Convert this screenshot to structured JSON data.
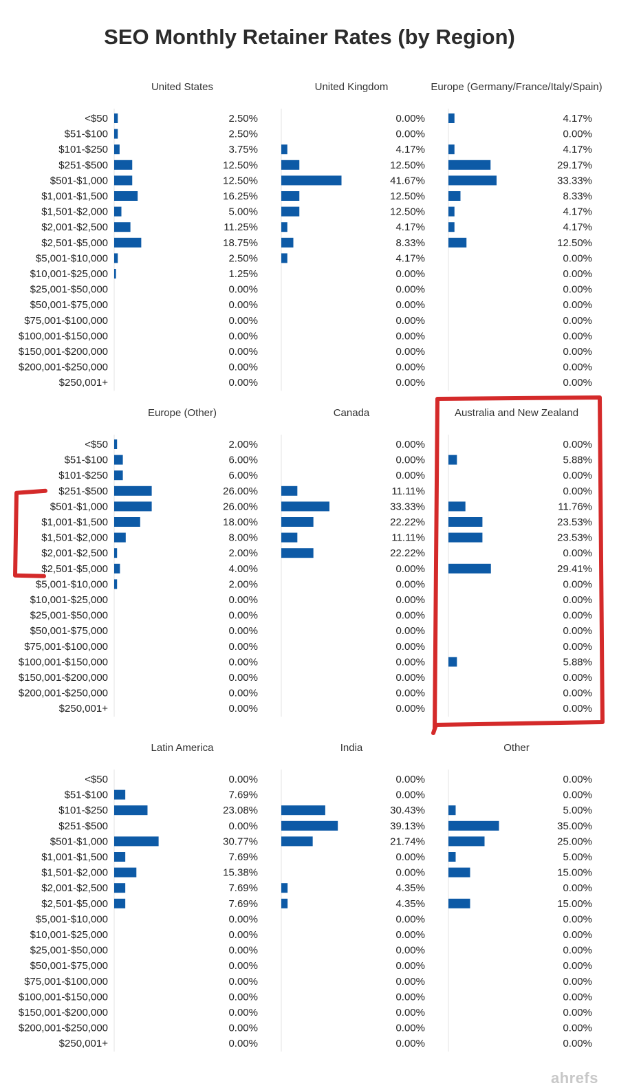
{
  "chart_data": {
    "type": "bar",
    "orientation": "horizontal",
    "title": "SEO Monthly Retainer Rates (by Region)",
    "value_format": "percent",
    "categories": [
      "<$50",
      "$51-$100",
      "$101-$250",
      "$251-$500",
      "$501-$1,000",
      "$1,001-$1,500",
      "$1,501-$2,000",
      "$2,001-$2,500",
      "$2,501-$5,000",
      "$5,001-$10,000",
      "$10,001-$25,000",
      "$25,001-$50,000",
      "$50,001-$75,000",
      "$75,001-$100,000",
      "$100,001-$150,000",
      "$150,001-$200,000",
      "$200,001-$250,000",
      "$250,001+"
    ],
    "xlim": [
      0,
      100
    ],
    "series": [
      {
        "name": "United States",
        "values": [
          2.5,
          2.5,
          3.75,
          12.5,
          12.5,
          16.25,
          5.0,
          11.25,
          18.75,
          2.5,
          1.25,
          0,
          0,
          0,
          0,
          0,
          0,
          0
        ],
        "labels": [
          "2.50%",
          "2.50%",
          "3.75%",
          "12.50%",
          "12.50%",
          "16.25%",
          "5.00%",
          "11.25%",
          "18.75%",
          "2.50%",
          "1.25%",
          "0.00%",
          "0.00%",
          "0.00%",
          "0.00%",
          "0.00%",
          "0.00%",
          "0.00%"
        ]
      },
      {
        "name": "United Kingdom",
        "values": [
          0,
          0,
          4.17,
          12.5,
          41.67,
          12.5,
          12.5,
          4.17,
          8.33,
          4.17,
          0,
          0,
          0,
          0,
          0,
          0,
          0,
          0
        ],
        "labels": [
          "0.00%",
          "0.00%",
          "4.17%",
          "12.50%",
          "41.67%",
          "12.50%",
          "12.50%",
          "4.17%",
          "8.33%",
          "4.17%",
          "0.00%",
          "0.00%",
          "0.00%",
          "0.00%",
          "0.00%",
          "0.00%",
          "0.00%",
          "0.00%"
        ]
      },
      {
        "name": "Europe (Germany/France/Italy/Spain)",
        "values": [
          4.17,
          0,
          4.17,
          29.17,
          33.33,
          8.33,
          4.17,
          4.17,
          12.5,
          0,
          0,
          0,
          0,
          0,
          0,
          0,
          0,
          0
        ],
        "labels": [
          "4.17%",
          "0.00%",
          "4.17%",
          "29.17%",
          "33.33%",
          "8.33%",
          "4.17%",
          "4.17%",
          "12.50%",
          "0.00%",
          "0.00%",
          "0.00%",
          "0.00%",
          "0.00%",
          "0.00%",
          "0.00%",
          "0.00%",
          "0.00%"
        ]
      },
      {
        "name": "Europe (Other)",
        "values": [
          2.0,
          6.0,
          6.0,
          26.0,
          26.0,
          18.0,
          8.0,
          2.0,
          4.0,
          2.0,
          0,
          0,
          0,
          0,
          0,
          0,
          0,
          0
        ],
        "labels": [
          "2.00%",
          "6.00%",
          "6.00%",
          "26.00%",
          "26.00%",
          "18.00%",
          "8.00%",
          "2.00%",
          "4.00%",
          "2.00%",
          "0.00%",
          "0.00%",
          "0.00%",
          "0.00%",
          "0.00%",
          "0.00%",
          "0.00%",
          "0.00%"
        ]
      },
      {
        "name": "Canada",
        "values": [
          0,
          0,
          0,
          11.11,
          33.33,
          22.22,
          11.11,
          22.22,
          0,
          0,
          0,
          0,
          0,
          0,
          0,
          0,
          0,
          0
        ],
        "labels": [
          "0.00%",
          "0.00%",
          "0.00%",
          "11.11%",
          "33.33%",
          "22.22%",
          "11.11%",
          "22.22%",
          "0.00%",
          "0.00%",
          "0.00%",
          "0.00%",
          "0.00%",
          "0.00%",
          "0.00%",
          "0.00%",
          "0.00%",
          "0.00%"
        ]
      },
      {
        "name": "Australia and New Zealand",
        "highlighted": true,
        "values": [
          0,
          5.88,
          0,
          0,
          11.76,
          23.53,
          23.53,
          0,
          29.41,
          0,
          0,
          0,
          0,
          0,
          5.88,
          0,
          0,
          0
        ],
        "labels": [
          "0.00%",
          "5.88%",
          "0.00%",
          "0.00%",
          "11.76%",
          "23.53%",
          "23.53%",
          "0.00%",
          "29.41%",
          "0.00%",
          "0.00%",
          "0.00%",
          "0.00%",
          "0.00%",
          "5.88%",
          "0.00%",
          "0.00%",
          "0.00%"
        ]
      },
      {
        "name": "Latin America",
        "values": [
          0,
          7.69,
          23.08,
          0,
          30.77,
          7.69,
          15.38,
          7.69,
          7.69,
          0,
          0,
          0,
          0,
          0,
          0,
          0,
          0,
          0
        ],
        "labels": [
          "0.00%",
          "7.69%",
          "23.08%",
          "0.00%",
          "30.77%",
          "7.69%",
          "15.38%",
          "7.69%",
          "7.69%",
          "0.00%",
          "0.00%",
          "0.00%",
          "0.00%",
          "0.00%",
          "0.00%",
          "0.00%",
          "0.00%",
          "0.00%"
        ]
      },
      {
        "name": "India",
        "values": [
          0,
          0,
          30.43,
          39.13,
          21.74,
          0,
          0,
          4.35,
          4.35,
          0,
          0,
          0,
          0,
          0,
          0,
          0,
          0,
          0
        ],
        "labels": [
          "0.00%",
          "0.00%",
          "30.43%",
          "39.13%",
          "21.74%",
          "0.00%",
          "0.00%",
          "4.35%",
          "4.35%",
          "0.00%",
          "0.00%",
          "0.00%",
          "0.00%",
          "0.00%",
          "0.00%",
          "0.00%",
          "0.00%",
          "0.00%"
        ]
      },
      {
        "name": "Other",
        "values": [
          0,
          0,
          5.0,
          35.0,
          25.0,
          5.0,
          15.0,
          0,
          15.0,
          0,
          0,
          0,
          0,
          0,
          0,
          0,
          0,
          0
        ],
        "labels": [
          "0.00%",
          "0.00%",
          "5.00%",
          "35.00%",
          "25.00%",
          "5.00%",
          "15.00%",
          "0.00%",
          "15.00%",
          "0.00%",
          "0.00%",
          "0.00%",
          "0.00%",
          "0.00%",
          "0.00%",
          "0.00%",
          "0.00%",
          "0.00%"
        ]
      }
    ],
    "annotations": [
      {
        "type": "bracket",
        "color": "#d01818",
        "target_series": "Europe (Other)",
        "category_range": [
          "$251-$500",
          "$2,501-$5,000"
        ]
      },
      {
        "type": "box",
        "color": "#d01818",
        "target_series": "Australia and New Zealand"
      }
    ]
  },
  "watermark": "ahrefs"
}
